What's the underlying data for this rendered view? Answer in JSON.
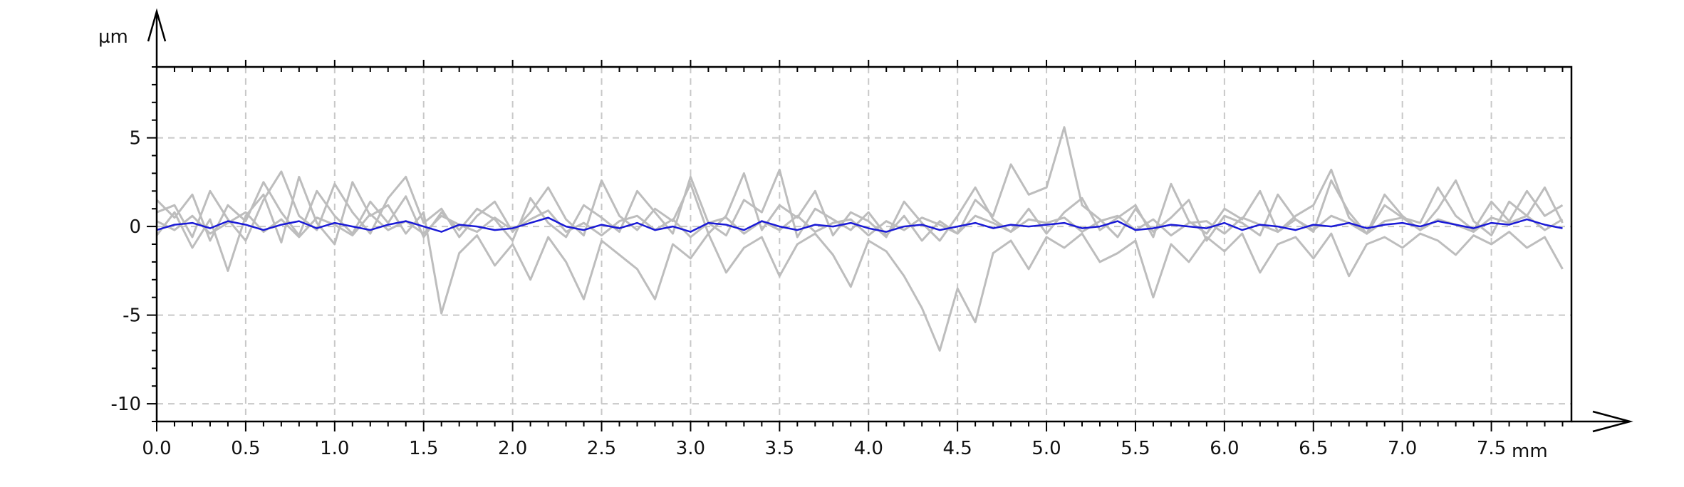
{
  "chart_data": {
    "type": "line",
    "title": "",
    "xlabel": "",
    "ylabel": "",
    "x_unit": "mm",
    "y_unit": "µm",
    "xlim": [
      0,
      7.95
    ],
    "ylim": [
      -11,
      9
    ],
    "x_ticks": [
      0.0,
      0.5,
      1.0,
      1.5,
      2.0,
      2.5,
      3.0,
      3.5,
      4.0,
      4.5,
      5.0,
      5.5,
      6.0,
      6.5,
      7.0,
      7.5
    ],
    "x_tick_labels": [
      "0.0",
      "0.5",
      "1.0",
      "1.5",
      "2.0",
      "2.5",
      "3.0",
      "3.5",
      "4.0",
      "4.5",
      "5.0",
      "5.5",
      "6.0",
      "6.5",
      "7.0",
      "7.5"
    ],
    "y_ticks": [
      5,
      0,
      -5,
      -10
    ],
    "y_tick_labels": [
      "5",
      "0",
      "-5",
      "-10"
    ],
    "grid": true,
    "legend": "none",
    "colors": {
      "profiles": "#bdbdbd",
      "mean": "#1a1ad6",
      "axis": "#000000",
      "grid": "#c8c8c8"
    },
    "series": [
      {
        "role": "profile",
        "x": [
          0,
          0.1,
          0.2,
          0.3,
          0.4,
          0.5,
          0.6,
          0.7,
          0.8,
          0.9,
          1.0,
          1.1,
          1.2,
          1.3,
          1.4,
          1.5,
          1.6,
          1.7,
          1.8,
          1.9,
          2.0,
          2.1,
          2.2,
          2.3,
          2.4,
          2.5,
          2.6,
          2.7,
          2.8,
          2.9,
          3.0,
          3.1,
          3.2,
          3.3,
          3.4,
          3.5,
          3.6,
          3.7,
          3.8,
          3.9,
          4.0,
          4.1,
          4.2,
          4.3,
          4.4,
          4.5,
          4.6,
          4.7,
          4.8,
          4.9,
          5.0,
          5.1,
          5.2,
          5.3,
          5.4,
          5.5,
          5.6,
          5.7,
          5.8,
          5.9,
          6.0,
          6.1,
          6.2,
          6.3,
          6.4,
          6.5,
          6.6,
          6.7,
          6.8,
          6.9,
          7.0,
          7.1,
          7.2,
          7.3,
          7.4,
          7.5,
          7.6,
          7.7,
          7.8,
          7.9
        ],
        "y": [
          1.5,
          0.5,
          1.8,
          -0.8,
          1.2,
          0.3,
          2.5,
          0.8,
          -0.5,
          2.0,
          0.6,
          -0.4,
          1.4,
          0.2,
          1.7,
          -0.6,
          0.8,
          -0.2,
          1.0,
          0.4,
          -0.8,
          1.6,
          0.2,
          -0.6,
          1.2,
          0.5,
          -0.3,
          2.0,
          0.8,
          -0.4,
          2.8,
          0.2,
          -0.5,
          1.5,
          0.8,
          3.2,
          -0.6,
          1.0,
          0.4,
          -0.2,
          0.8,
          -0.5,
          0.6,
          -0.8,
          0.3,
          -0.4,
          1.5,
          0.6,
          3.5,
          1.8,
          2.2,
          5.6,
          1.2,
          0.4,
          -0.6,
          1.0,
          -0.3,
          0.5,
          1.5,
          -0.8,
          0.6,
          0.2,
          -0.5,
          1.8,
          0.4,
          -0.3,
          2.6,
          0.8,
          -0.4,
          1.2,
          0.5,
          0.2,
          2.2,
          0.6,
          -0.2,
          1.4,
          0.3,
          2.0,
          0.6,
          1.2
        ]
      },
      {
        "role": "profile",
        "x": [
          0,
          0.1,
          0.2,
          0.3,
          0.4,
          0.5,
          0.6,
          0.7,
          0.8,
          0.9,
          1.0,
          1.1,
          1.2,
          1.3,
          1.4,
          1.5,
          1.6,
          1.7,
          1.8,
          1.9,
          2.0,
          2.1,
          2.2,
          2.3,
          2.4,
          2.5,
          2.6,
          2.7,
          2.8,
          2.9,
          3.0,
          3.1,
          3.2,
          3.3,
          3.4,
          3.5,
          3.6,
          3.7,
          3.8,
          3.9,
          4.0,
          4.1,
          4.2,
          4.3,
          4.4,
          4.5,
          4.6,
          4.7,
          4.8,
          4.9,
          5.0,
          5.1,
          5.2,
          5.3,
          5.4,
          5.5,
          5.6,
          5.7,
          5.8,
          5.9,
          6.0,
          6.1,
          6.2,
          6.3,
          6.4,
          6.5,
          6.6,
          6.7,
          6.8,
          6.9,
          7.0,
          7.1,
          7.2,
          7.3,
          7.4,
          7.5,
          7.6,
          7.7,
          7.8,
          7.9
        ],
        "y": [
          -0.5,
          0.8,
          -1.2,
          0.4,
          -2.5,
          0.6,
          1.8,
          -0.9,
          2.8,
          0.2,
          -1.0,
          2.5,
          0.6,
          1.2,
          -0.4,
          0.8,
          -4.9,
          -1.5,
          -0.5,
          -2.2,
          -1.0,
          -3.0,
          -0.6,
          -2.0,
          -4.1,
          -0.8,
          -1.6,
          -2.4,
          -4.1,
          -1.0,
          -1.8,
          -0.4,
          -2.6,
          -1.2,
          -0.6,
          -2.8,
          -1.0,
          -0.4,
          -1.6,
          -3.4,
          -0.8,
          -1.4,
          -2.8,
          -4.6,
          -7.0,
          -3.5,
          -5.4,
          -1.5,
          -0.8,
          -2.4,
          -0.6,
          -1.2,
          -0.4,
          -2.0,
          -1.5,
          -0.8,
          -4.0,
          -1.0,
          -2.0,
          -0.6,
          -1.4,
          -0.4,
          -2.6,
          -1.0,
          -0.6,
          -1.8,
          -0.4,
          -2.8,
          -1.0,
          -0.6,
          -1.2,
          -0.4,
          -0.8,
          -1.6,
          -0.5,
          -1.0,
          -0.3,
          -1.2,
          -0.6,
          -2.4
        ]
      },
      {
        "role": "profile",
        "x": [
          0,
          0.1,
          0.2,
          0.3,
          0.4,
          0.5,
          0.6,
          0.7,
          0.8,
          0.9,
          1.0,
          1.1,
          1.2,
          1.3,
          1.4,
          1.5,
          1.6,
          1.7,
          1.8,
          1.9,
          2.0,
          2.1,
          2.2,
          2.3,
          2.4,
          2.5,
          2.6,
          2.7,
          2.8,
          2.9,
          3.0,
          3.1,
          3.2,
          3.3,
          3.4,
          3.5,
          3.6,
          3.7,
          3.8,
          3.9,
          4.0,
          4.1,
          4.2,
          4.3,
          4.4,
          4.5,
          4.6,
          4.7,
          4.8,
          4.9,
          5.0,
          5.1,
          5.2,
          5.3,
          5.4,
          5.5,
          5.6,
          5.7,
          5.8,
          5.9,
          6.0,
          6.1,
          6.2,
          6.3,
          6.4,
          6.5,
          6.6,
          6.7,
          6.8,
          6.9,
          7.0,
          7.1,
          7.2,
          7.3,
          7.4,
          7.5,
          7.6,
          7.7,
          7.8,
          7.9
        ],
        "y": [
          0.3,
          -0.2,
          0.6,
          -0.4,
          0.2,
          0.8,
          -0.3,
          0.4,
          -0.6,
          0.5,
          0.1,
          -0.5,
          0.7,
          -0.2,
          0.3,
          -0.4,
          0.6,
          0.1,
          -0.3,
          0.5,
          -0.2,
          0.4,
          0.9,
          -0.3,
          0.2,
          -0.5,
          0.3,
          0.6,
          -0.2,
          0.4,
          -0.6,
          0.2,
          0.5,
          -0.4,
          0.3,
          -0.2,
          0.6,
          -0.3,
          0.2,
          0.4,
          -0.5,
          0.3,
          -0.2,
          0.5,
          0.1,
          -0.4,
          0.6,
          0.2,
          -0.3,
          0.4,
          0.2,
          0.5,
          -0.3,
          0.3,
          0.6,
          -0.2,
          0.4,
          -0.5,
          0.2,
          0.3,
          -0.4,
          0.5,
          0.1,
          -0.3,
          0.4,
          -0.2,
          0.6,
          0.2,
          -0.4,
          0.3,
          0.5,
          -0.2,
          0.4,
          0.1,
          -0.3,
          0.5,
          0.2,
          0.6,
          -0.2,
          0.4
        ]
      },
      {
        "role": "profile",
        "x": [
          0,
          0.1,
          0.2,
          0.3,
          0.4,
          0.5,
          0.6,
          0.7,
          0.8,
          0.9,
          1.0,
          1.1,
          1.2,
          1.3,
          1.4,
          1.5,
          1.6,
          1.7,
          1.8,
          1.9,
          2.0,
          2.1,
          2.2,
          2.3,
          2.4,
          2.5,
          2.6,
          2.7,
          2.8,
          2.9,
          3.0,
          3.1,
          3.2,
          3.3,
          3.4,
          3.5,
          3.6,
          3.7,
          3.8,
          3.9,
          4.0,
          4.1,
          4.2,
          4.3,
          4.4,
          4.5,
          4.6,
          4.7,
          4.8,
          4.9,
          5.0,
          5.1,
          5.2,
          5.3,
          5.4,
          5.5,
          5.6,
          5.7,
          5.8,
          5.9,
          6.0,
          6.1,
          6.2,
          6.3,
          6.4,
          6.5,
          6.6,
          6.7,
          6.8,
          6.9,
          7.0,
          7.1,
          7.2,
          7.3,
          7.4,
          7.5,
          7.6,
          7.7,
          7.8,
          7.9
        ],
        "y": [
          0.8,
          1.2,
          -0.6,
          2.0,
          0.4,
          -0.8,
          1.5,
          3.1,
          0.6,
          -0.2,
          2.4,
          0.8,
          -0.4,
          1.6,
          2.8,
          0.2,
          1.0,
          -0.6,
          0.6,
          1.4,
          -0.3,
          0.8,
          2.2,
          0.4,
          -0.5,
          2.6,
          0.6,
          -0.2,
          1.0,
          0.3,
          2.4,
          -0.4,
          0.6,
          3.0,
          -0.2,
          1.2,
          0.5,
          2.0,
          -0.5,
          0.8,
          0.3,
          -0.6,
          1.4,
          0.2,
          -0.8,
          0.6,
          2.2,
          0.4,
          -0.3,
          1.0,
          -0.4,
          0.8,
          1.6,
          -0.2,
          0.5,
          1.2,
          -0.6,
          2.4,
          0.3,
          -0.4,
          1.0,
          0.4,
          2.0,
          -0.3,
          0.6,
          1.2,
          3.2,
          0.5,
          -0.4,
          1.8,
          0.6,
          -0.2,
          1.0,
          2.6,
          0.3,
          -0.5,
          1.4,
          0.6,
          2.2,
          0.2
        ]
      },
      {
        "role": "mean",
        "x": [
          0,
          0.1,
          0.2,
          0.3,
          0.4,
          0.5,
          0.6,
          0.7,
          0.8,
          0.9,
          1.0,
          1.1,
          1.2,
          1.3,
          1.4,
          1.5,
          1.6,
          1.7,
          1.8,
          1.9,
          2.0,
          2.1,
          2.2,
          2.3,
          2.4,
          2.5,
          2.6,
          2.7,
          2.8,
          2.9,
          3.0,
          3.1,
          3.2,
          3.3,
          3.4,
          3.5,
          3.6,
          3.7,
          3.8,
          3.9,
          4.0,
          4.1,
          4.2,
          4.3,
          4.4,
          4.5,
          4.6,
          4.7,
          4.8,
          4.9,
          5.0,
          5.1,
          5.2,
          5.3,
          5.4,
          5.5,
          5.6,
          5.7,
          5.8,
          5.9,
          6.0,
          6.1,
          6.2,
          6.3,
          6.4,
          6.5,
          6.6,
          6.7,
          6.8,
          6.9,
          7.0,
          7.1,
          7.2,
          7.3,
          7.4,
          7.5,
          7.6,
          7.7,
          7.8,
          7.9
        ],
        "y": [
          -0.2,
          0.1,
          0.2,
          -0.1,
          0.3,
          0.1,
          -0.2,
          0.1,
          0.3,
          -0.1,
          0.2,
          0.0,
          -0.2,
          0.1,
          0.3,
          0.0,
          -0.3,
          0.1,
          0.0,
          -0.2,
          -0.1,
          0.2,
          0.5,
          0.0,
          -0.2,
          0.1,
          -0.1,
          0.2,
          -0.2,
          0.0,
          -0.3,
          0.2,
          0.1,
          -0.2,
          0.3,
          0.0,
          -0.2,
          0.1,
          0.0,
          0.2,
          -0.1,
          -0.3,
          0.0,
          0.1,
          -0.2,
          0.0,
          0.2,
          -0.1,
          0.1,
          0.0,
          0.1,
          0.2,
          -0.1,
          0.0,
          0.3,
          -0.2,
          -0.1,
          0.1,
          0.0,
          -0.1,
          0.2,
          -0.2,
          0.1,
          0.0,
          -0.2,
          0.1,
          0.0,
          0.2,
          -0.1,
          0.1,
          0.2,
          0.0,
          0.3,
          0.1,
          -0.1,
          0.2,
          0.1,
          0.4,
          0.1,
          -0.1
        ]
      }
    ]
  }
}
